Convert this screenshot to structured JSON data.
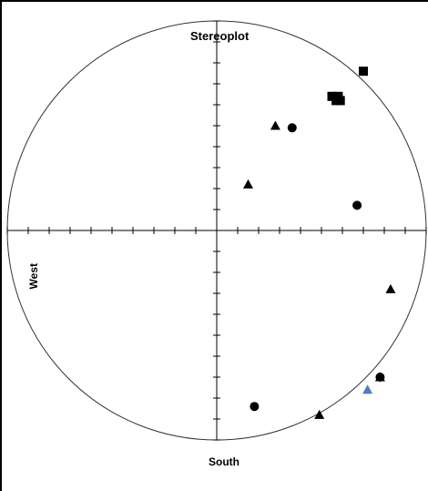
{
  "chart_data": {
    "type": "scatter",
    "title": "Stereoplot",
    "xlabel": "West",
    "ylabel": "South",
    "xlim": [
      -1,
      1
    ],
    "ylim": [
      -1,
      1
    ],
    "grid": false,
    "colors": {
      "black": "#000000",
      "highlight": "#4a7cc9"
    },
    "series": [
      {
        "marker": "square",
        "color": "#000000",
        "points": [
          [
            0.7,
            0.76
          ],
          [
            0.58,
            0.64
          ],
          [
            0.55,
            0.64
          ],
          [
            0.57,
            0.62
          ],
          [
            0.59,
            0.62
          ]
        ]
      },
      {
        "marker": "circle",
        "color": "#000000",
        "points": [
          [
            0.36,
            0.49
          ],
          [
            0.67,
            0.12
          ],
          [
            0.78,
            -0.7
          ],
          [
            0.18,
            -0.84
          ]
        ]
      },
      {
        "marker": "triangle",
        "color": "#000000",
        "points": [
          [
            0.28,
            0.5
          ],
          [
            0.15,
            0.22
          ],
          [
            0.83,
            -0.28
          ],
          [
            0.78,
            -0.7
          ],
          [
            0.49,
            -0.88
          ]
        ]
      },
      {
        "marker": "triangle",
        "color": "#4a7cc9",
        "points": [
          [
            0.72,
            -0.76
          ]
        ]
      }
    ]
  }
}
